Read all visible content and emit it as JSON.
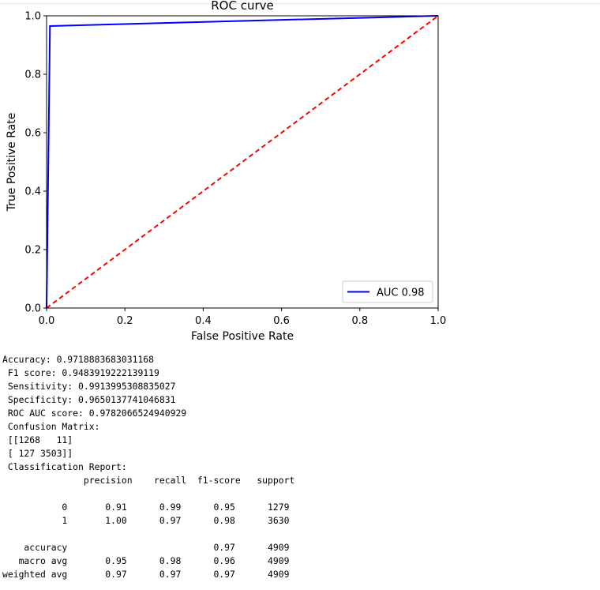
{
  "chart_data": {
    "type": "line",
    "title": "ROC curve",
    "xlabel": "False Positive Rate",
    "ylabel": "True Positive Rate",
    "xlim": [
      0.0,
      1.0
    ],
    "ylim": [
      0.0,
      1.0
    ],
    "xticks": [
      "0.0",
      "0.2",
      "0.4",
      "0.6",
      "0.8",
      "1.0"
    ],
    "yticks": [
      "0.0",
      "0.2",
      "0.4",
      "0.6",
      "0.8",
      "1.0"
    ],
    "grid": false,
    "legend_position": "lower-right",
    "series": [
      {
        "name": "AUC 0.98",
        "color": "#0000ff",
        "style": "solid",
        "x": [
          0.0,
          0.0086,
          1.0
        ],
        "y": [
          0.0,
          0.965,
          1.0
        ]
      },
      {
        "color": "#ff0000",
        "style": "dashed",
        "x": [
          0.0,
          1.0
        ],
        "y": [
          0.0,
          1.0
        ]
      }
    ]
  },
  "output": {
    "lines": [
      "Accuracy: 0.9718883683031168",
      " F1 score: 0.9483919222139119",
      " Sensitivity: 0.9913995308835027",
      " Specificity: 0.9650137741046831",
      " ROC AUC score: 0.9782066524940929",
      " Confusion Matrix:",
      " [[1268   11]",
      " [ 127 3503]]",
      " Classification Report:",
      "               precision    recall  f1-score   support",
      "",
      "           0       0.91      0.99      0.95      1279",
      "           1       1.00      0.97      0.98      3630",
      "",
      "    accuracy                           0.97      4909",
      "   macro avg       0.95      0.98      0.96      4909",
      "weighted avg       0.97      0.97      0.97      4909"
    ]
  }
}
